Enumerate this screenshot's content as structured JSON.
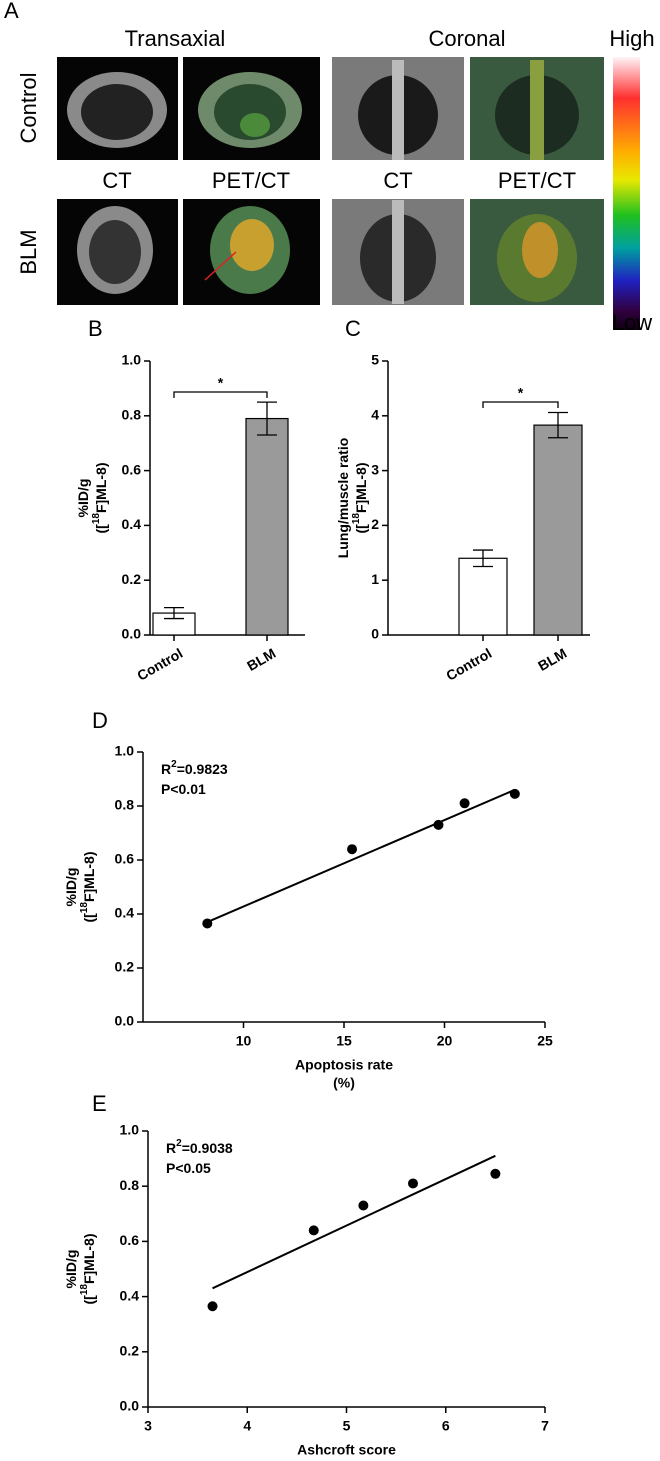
{
  "panel_a": {
    "label": "A",
    "columns": [
      "Transaxial",
      "Coronal"
    ],
    "scale": [
      "High",
      "Low"
    ],
    "rows": [
      "Control",
      "BLM"
    ],
    "modalities": [
      "CT",
      "PET/CT",
      "CT",
      "PET/CT"
    ]
  },
  "chart_data": [
    {
      "type": "bar",
      "label": "B",
      "categories": [
        "Control",
        "BLM"
      ],
      "values": [
        0.08,
        0.79
      ],
      "errors": [
        0.02,
        0.06
      ],
      "colors": [
        "#ffffff",
        "#9a9a9a"
      ],
      "ylim": [
        0,
        1
      ],
      "yticks": [
        {
          "value": 0,
          "label": "0.0"
        },
        0.2,
        0.4,
        0.6,
        0.8,
        {
          "value": 1,
          "label": "1.0"
        }
      ],
      "y_label": [
        "%ID/g",
        [
          "([",
          "18",
          "F]ML-8)"
        ]
      ],
      "significance": "*"
    },
    {
      "type": "bar",
      "label": "C",
      "categories": [
        "Control",
        "BLM"
      ],
      "values": [
        1.4,
        3.83
      ],
      "errors": [
        0.15,
        0.23
      ],
      "colors": [
        "#ffffff",
        "#9a9a9a"
      ],
      "ylim": [
        0,
        5
      ],
      "yticks": [
        0,
        1,
        2,
        3,
        4,
        5
      ],
      "y_label": [
        "Lung/muscle ratio",
        [
          "([",
          "18",
          "F]ML-8)"
        ]
      ],
      "significance": "*"
    },
    {
      "type": "scatter",
      "label": "D",
      "x": [
        8.2,
        15.4,
        19.7,
        21.0,
        23.5
      ],
      "y": [
        0.365,
        0.64,
        0.73,
        0.81,
        0.845
      ],
      "fit": {
        "x": [
          8.2,
          23.5
        ],
        "y": [
          0.37,
          0.86
        ]
      },
      "color": "#000000",
      "xlim": [
        5,
        25
      ],
      "xticks": [
        10,
        15,
        20,
        25
      ],
      "ylim": [
        0,
        1
      ],
      "yticks": [
        {
          "value": 0,
          "label": "0.0"
        },
        0.2,
        0.4,
        0.6,
        0.8,
        {
          "value": 1,
          "label": "1.0"
        }
      ],
      "x_label": [
        "Apoptosis rate",
        "(%)"
      ],
      "y_label": [
        "%ID/g",
        [
          "([",
          "18",
          "F]ML-8)"
        ]
      ],
      "annotations": [
        [
          "R",
          "2",
          "=0.9823"
        ],
        [
          "P<0.01"
        ]
      ]
    },
    {
      "type": "scatter",
      "label": "E",
      "x": [
        3.65,
        4.67,
        5.17,
        5.67,
        6.5
      ],
      "y": [
        0.365,
        0.64,
        0.73,
        0.81,
        0.845
      ],
      "fit": {
        "x": [
          3.65,
          6.5
        ],
        "y": [
          0.43,
          0.91
        ]
      },
      "color": "#000000",
      "xlim": [
        3,
        7
      ],
      "xticks": [
        3,
        4,
        5,
        6,
        7
      ],
      "ylim": [
        0,
        1
      ],
      "yticks": [
        {
          "value": 0,
          "label": "0.0"
        },
        0.2,
        0.4,
        0.6,
        0.8,
        {
          "value": 1,
          "label": "1.0"
        }
      ],
      "x_label": [
        "Ashcroft score"
      ],
      "y_label": [
        "%ID/g",
        [
          "([",
          "18",
          "F]ML-8)"
        ]
      ],
      "annotations": [
        [
          "R",
          "2",
          "=0.9038"
        ],
        [
          "P<0.05"
        ]
      ]
    }
  ]
}
